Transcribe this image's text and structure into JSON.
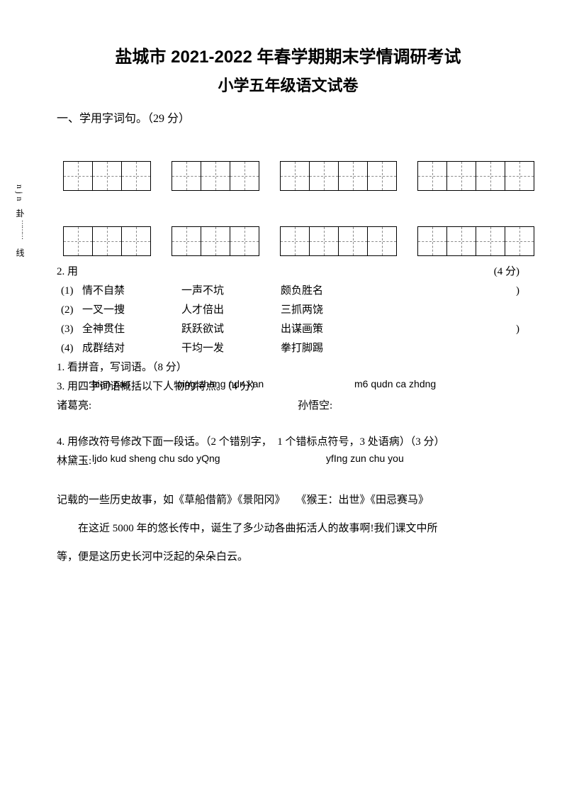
{
  "title_main": "盐城市 2021-2022 年春学期期末学情调研考试",
  "title_sub": "小学五年级语文试卷",
  "section1_heading": "一、学用字词句。（29 分）",
  "vertical_label_1": "njn 卦",
  "vertical_dots": "………",
  "vertical_label_2": "线",
  "q2_prefix": "2. 用",
  "q2_points": "(4 分)",
  "rows": [
    {
      "n": "(1)",
      "a": "情不自禁",
      "b": "一声不坑",
      "c": "颇负胜名",
      "end": ")"
    },
    {
      "n": "(2)",
      "a": "一叉一捜",
      "b": "人才倍出",
      "c": "三抓两饶",
      "end": ""
    },
    {
      "n": "(3)",
      "a": "全神贯住",
      "b": "跃跃欲试",
      "c": "出谋画策",
      "end": ")"
    },
    {
      "n": "(4)",
      "a": "成群结对",
      "b": "干均一发",
      "c": "拳打脚踢",
      "end": ""
    }
  ],
  "q1_line": "1. 看拼音，写词语。（8 分）",
  "q3_line": "3. 用四字词语概括以下人物的特点。（4 分）",
  "pinyin_a1": "bian pao",
  "pinyin_b1_overlap": "ping zhang ndn kan",
  "pinyin_c1": "m6 qudn ca zhdng",
  "char_a": "诸葛亮:",
  "char_b": "孙悟空:",
  "q4_line": "4. 用修改符号修改下面一段话。（2 个错别字，　1 个错标点符号，3 处语病）（3 分）",
  "char_c": "林黛玉:",
  "pinyin_a2_overlap": "ljdo kud sheng chu sdo yQng",
  "pinyin_b2": "yfIng zun chu you",
  "para1": "记载的一些历史故事，如《草船借箭》《景阳冈》　　《猴王：出世》《田忌赛马》",
  "para2_mix": "　　在这近 5000 年的悠长传中，诞生了多少动各曲拓活人的故事啊!我们课文中所",
  "para3": "等，便是这历史长河中泛起的朵朵白云。",
  "grid_sizes_row1": [
    3,
    3,
    4,
    4
  ],
  "grid_sizes_row2": [
    3,
    3,
    4,
    4
  ]
}
